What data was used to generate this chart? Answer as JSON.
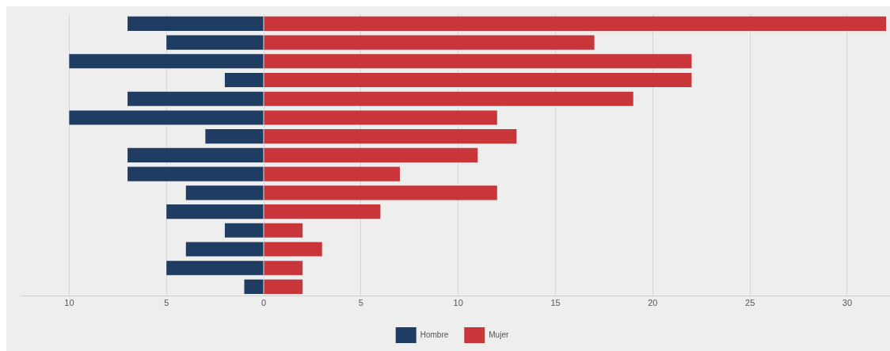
{
  "chart_data": {
    "type": "bar",
    "orientation": "horizontal",
    "stacked": true,
    "categories": [
      null,
      null,
      null,
      null,
      null,
      null,
      null,
      null,
      null,
      null,
      null,
      null,
      null,
      null,
      null
    ],
    "series": [
      {
        "name": "Hombre",
        "color": "#1f3d63",
        "values": [
          -7,
          -5,
          -10,
          -2,
          -7,
          -10,
          -3,
          -7,
          -7,
          -4,
          -5,
          -2,
          -4,
          -5,
          -1
        ]
      },
      {
        "name": "Mujer",
        "color": "#c8363a",
        "values": [
          32,
          17,
          22,
          22,
          19,
          12,
          13,
          11,
          7,
          12,
          6,
          2,
          3,
          2,
          2
        ]
      }
    ],
    "xlim": [
      -12.5,
      32.2
    ],
    "xticks": [
      {
        "value": -10,
        "label": "10"
      },
      {
        "value": -5,
        "label": "5"
      },
      0,
      5,
      10,
      15,
      20,
      25,
      30
    ],
    "grid": "x",
    "legend": "bottom"
  }
}
